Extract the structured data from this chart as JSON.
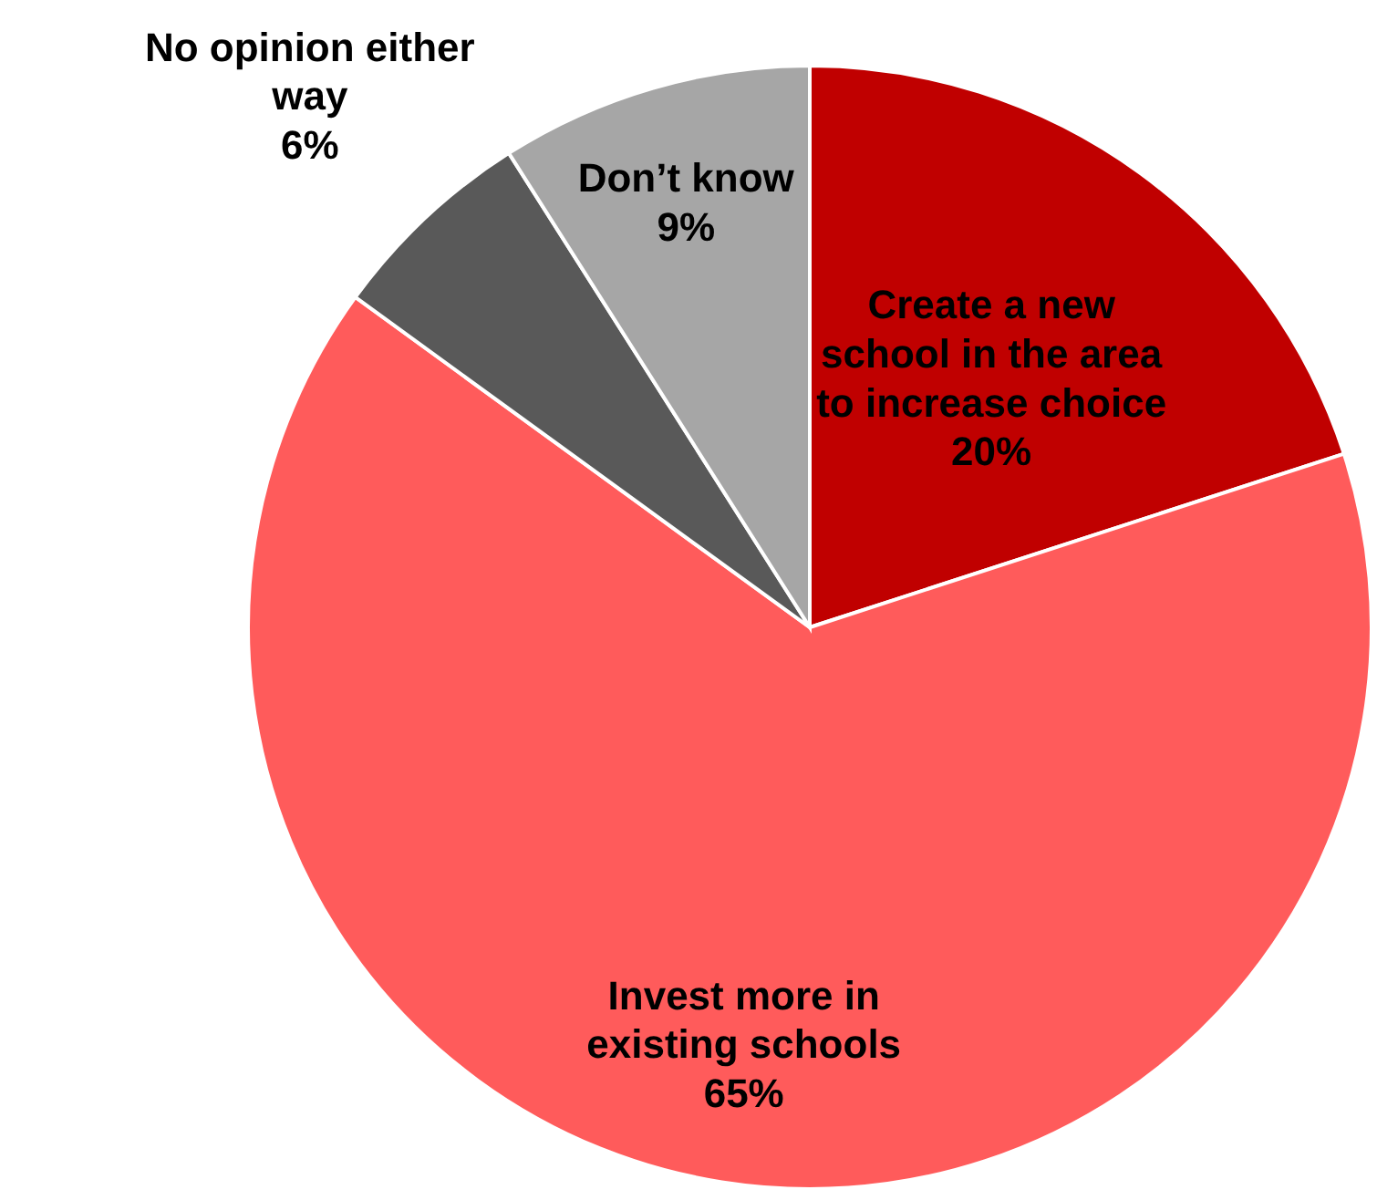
{
  "chart_data": {
    "type": "pie",
    "categories": [
      "Create a new school in the area to increase choice",
      "Invest more in existing schools",
      "No opinion either way",
      "Don’t know"
    ],
    "values": [
      20,
      65,
      6,
      9
    ],
    "colors": [
      "#c00000",
      "#ff5b5b",
      "#595959",
      "#a6a6a6"
    ],
    "value_labels": [
      "20%",
      "65%",
      "6%",
      "9%"
    ]
  }
}
